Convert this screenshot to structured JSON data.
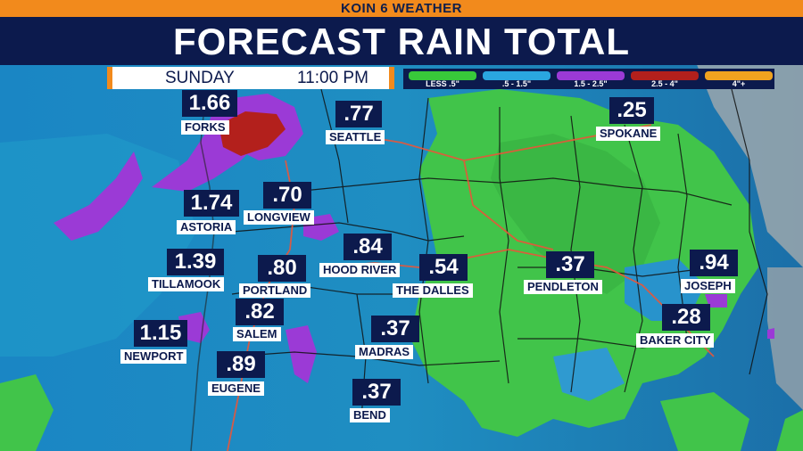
{
  "header": {
    "station": "KOIN 6 WEATHER",
    "title": "FORECAST RAIN TOTAL"
  },
  "timebar": {
    "day": "SUNDAY",
    "time": "11:00 PM"
  },
  "legend": [
    {
      "label": "LESS .5\"",
      "color": "#38c93a"
    },
    {
      "label": ".5 - 1.5\"",
      "color": "#2aa6e0"
    },
    {
      "label": "1.5 - 2.5\"",
      "color": "#9b3ad6"
    },
    {
      "label": "2.5 - 4\"",
      "color": "#b3201c"
    },
    {
      "label": "4\"+",
      "color": "#f0a21f"
    }
  ],
  "cities": [
    {
      "name": "FORKS",
      "total": "1.66"
    },
    {
      "name": "SEATTLE",
      "total": ".77"
    },
    {
      "name": "SPOKANE",
      "total": ".25"
    },
    {
      "name": "ASTORIA",
      "total": "1.74"
    },
    {
      "name": "LONGVIEW",
      "total": ".70"
    },
    {
      "name": "TILLAMOOK",
      "total": "1.39"
    },
    {
      "name": "PORTLAND",
      "total": ".80"
    },
    {
      "name": "HOOD RIVER",
      "total": ".84"
    },
    {
      "name": "THE DALLES",
      "total": ".54"
    },
    {
      "name": "PENDLETON",
      "total": ".37"
    },
    {
      "name": "JOSEPH",
      "total": ".94"
    },
    {
      "name": "SALEM",
      "total": ".82"
    },
    {
      "name": "NEWPORT",
      "total": "1.15"
    },
    {
      "name": "MADRAS",
      "total": ".37"
    },
    {
      "name": "BAKER CITY",
      "total": ".28"
    },
    {
      "name": "EUGENE",
      "total": ".89"
    },
    {
      "name": "BEND",
      "total": ".37"
    }
  ]
}
